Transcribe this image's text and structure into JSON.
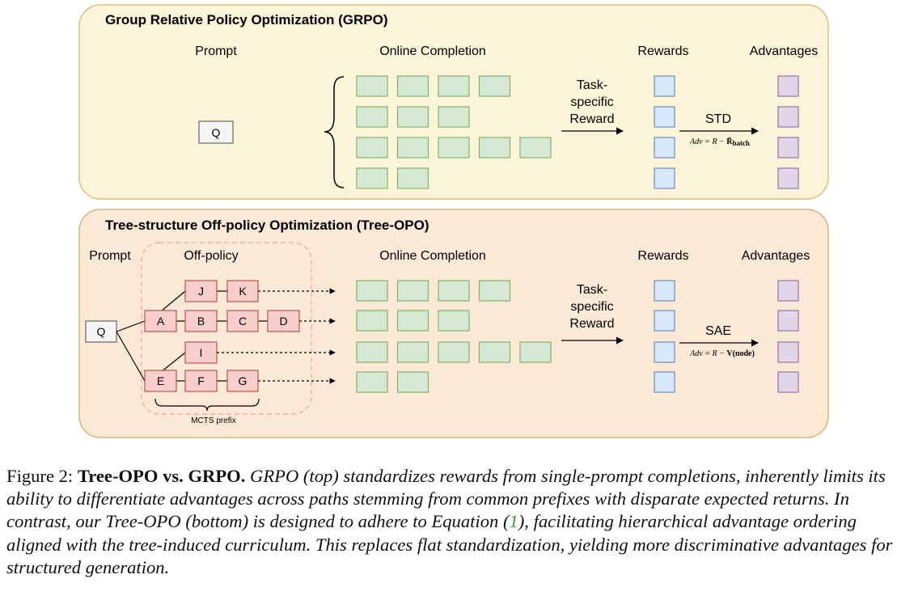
{
  "grpo": {
    "title": "Group Relative Policy Optimization (GRPO)",
    "prompt_label": "Prompt",
    "online_label": "Online Completion",
    "rewards_label": "Rewards",
    "advantages_label": "Advantages",
    "query": "Q",
    "reward_fn": [
      "Task-",
      "specific",
      "Reward"
    ],
    "norm": "STD",
    "adv_formula": {
      "lhs": "Adv = R − ",
      "rhs": "R̄",
      "sub": "batch"
    },
    "completion_rows": [
      4,
      3,
      5,
      2
    ]
  },
  "treeopo": {
    "title": "Tree-structure Off-policy Optimization (Tree-OPO)",
    "prompt_label": "Prompt",
    "offpolicy_label": "Off-policy",
    "online_label": "Online Completion",
    "rewards_label": "Rewards",
    "advantages_label": "Advantages",
    "query": "Q",
    "reward_fn": [
      "Task-",
      "specific",
      "Reward"
    ],
    "norm": "SAE",
    "adv_formula": {
      "lhs": "Adv = R − ",
      "rhs": "V(node)"
    },
    "prefix_label": "MCTS prefix",
    "nodes": [
      "A",
      "B",
      "C",
      "D",
      "E",
      "F",
      "G",
      "I",
      "J",
      "K"
    ],
    "completion_rows": [
      4,
      3,
      5,
      2
    ]
  },
  "caption": {
    "label": "Figure 2: ",
    "title": "Tree-OPO vs. GRPO.",
    "body_1": " GRPO (top) standardizes rewards from single-prompt completions, inherently limits its ability to differentiate advantages across paths stemming from common prefixes with disparate expected returns. In contrast, our Tree-OPO (bottom) is designed to adhere to Equation (",
    "ref": "1",
    "body_2": "), facilitating hierarchical advantage ordering aligned with the tree-induced curriculum. This replaces flat standardization, yielding more discriminative advantages for structured generation."
  },
  "colors": {
    "grpo_bg": "#fcf4d9",
    "grpo_border": "#d8c27a",
    "tree_bg": "#fbe9d6",
    "tree_border": "#d9b37e",
    "completion_fill": "#d5e8d4",
    "completion_stroke": "#82b366",
    "reward_fill": "#dae8fc",
    "reward_stroke": "#6c8ebf",
    "adv_fill": "#e1d5e7",
    "adv_stroke": "#9673a6",
    "node_fill": "#f8cecc",
    "node_stroke": "#b85450",
    "prefix_dash": "#e8a8a8"
  }
}
